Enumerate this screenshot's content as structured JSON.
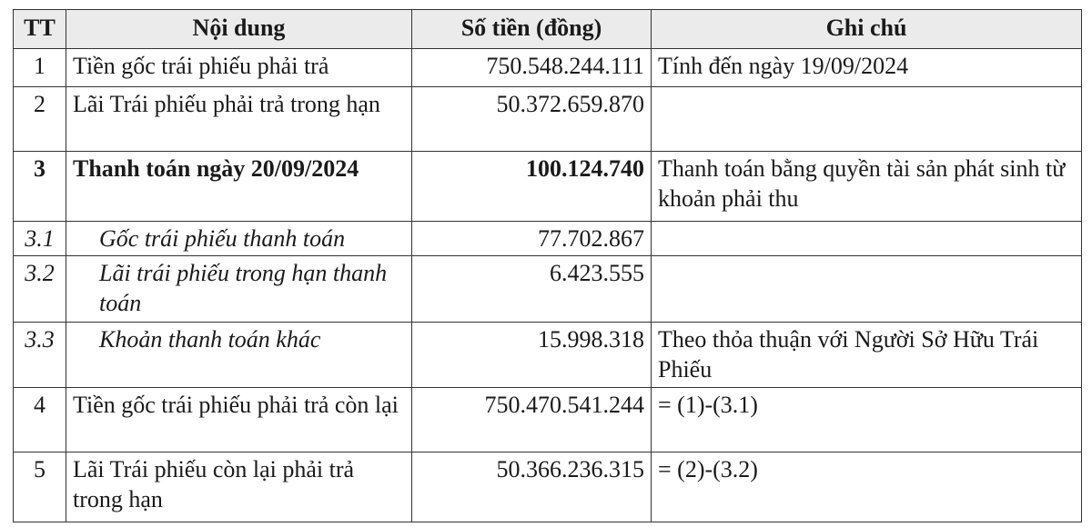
{
  "table": {
    "headers": [
      "TT",
      "Nội dung",
      "Số tiền (đồng)",
      "Ghi chú"
    ],
    "rows": [
      {
        "tt": "1",
        "content": "Tiền gốc trái phiếu phải trả",
        "amount": "750.548.244.111",
        "note": "Tính đến ngày 19/09/2024"
      },
      {
        "tt": "2",
        "content": "Lãi Trái phiếu phải trả trong hạn",
        "amount": "50.372.659.870",
        "note": ""
      },
      {
        "tt": "3",
        "content": "Thanh toán ngày 20/09/2024",
        "amount": "100.124.740",
        "note": "Thanh toán bằng quyền tài sản phát sinh từ khoản phải thu"
      },
      {
        "tt": "3.1",
        "content": "Gốc trái phiếu thanh toán",
        "amount": "77.702.867",
        "note": ""
      },
      {
        "tt": "3.2",
        "content": "Lãi trái phiếu trong hạn thanh toán",
        "amount": "6.423.555",
        "note": ""
      },
      {
        "tt": "3.3",
        "content": "Khoản thanh toán khác",
        "amount": "15.998.318",
        "note": "Theo thỏa thuận với Người Sở Hữu Trái Phiếu"
      },
      {
        "tt": "4",
        "content": "Tiền gốc trái phiếu phải trả còn lại",
        "amount": "750.470.541.244",
        "note": "= (1)-(3.1)"
      },
      {
        "tt": "5",
        "content": "Lãi Trái phiếu còn lại phải trả trong hạn",
        "amount": "50.366.236.315",
        "note": "= (2)-(3.2)"
      }
    ]
  }
}
